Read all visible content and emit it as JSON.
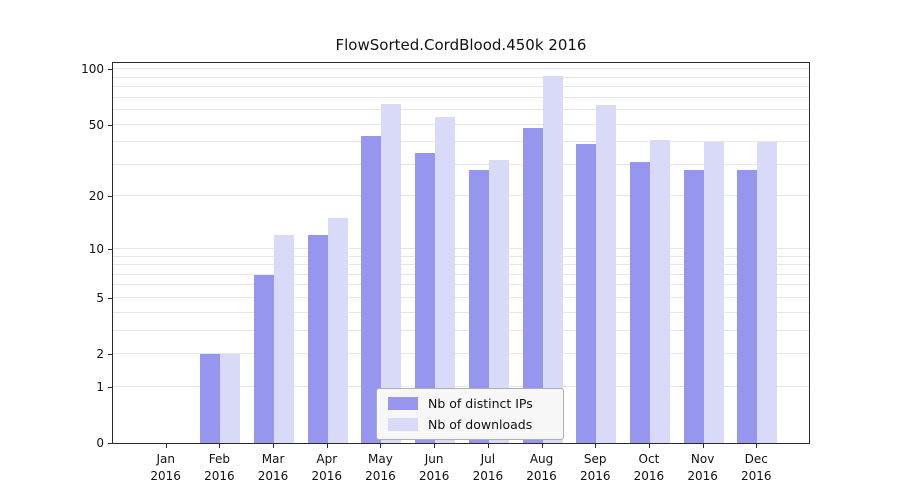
{
  "chart_data": {
    "type": "bar",
    "title": "FlowSorted.CordBlood.450k 2016",
    "year": "2016",
    "categories": [
      "Jan",
      "Feb",
      "Mar",
      "Apr",
      "May",
      "Jun",
      "Jul",
      "Aug",
      "Sep",
      "Oct",
      "Nov",
      "Dec"
    ],
    "series": [
      {
        "name": "Nb of distinct IPs",
        "color": "#9696ee",
        "values": [
          0,
          2,
          7,
          12,
          43,
          35,
          28,
          48,
          39,
          31,
          28,
          28
        ]
      },
      {
        "name": "Nb of downloads",
        "color": "#d9d9f8",
        "values": [
          0,
          2,
          12,
          15,
          65,
          55,
          32,
          92,
          64,
          41,
          40,
          40
        ]
      }
    ],
    "yticks": [
      0,
      1,
      2,
      5,
      10,
      20,
      50,
      100
    ],
    "grid_values": [
      1,
      2,
      3,
      4,
      5,
      6,
      7,
      8,
      9,
      10,
      20,
      30,
      40,
      50,
      60,
      70,
      80,
      90,
      100
    ],
    "scale": "log1p",
    "ylim": [
      0,
      110
    ],
    "grid": true,
    "legend_position": "bottom-center",
    "xlabel": "",
    "ylabel": ""
  }
}
